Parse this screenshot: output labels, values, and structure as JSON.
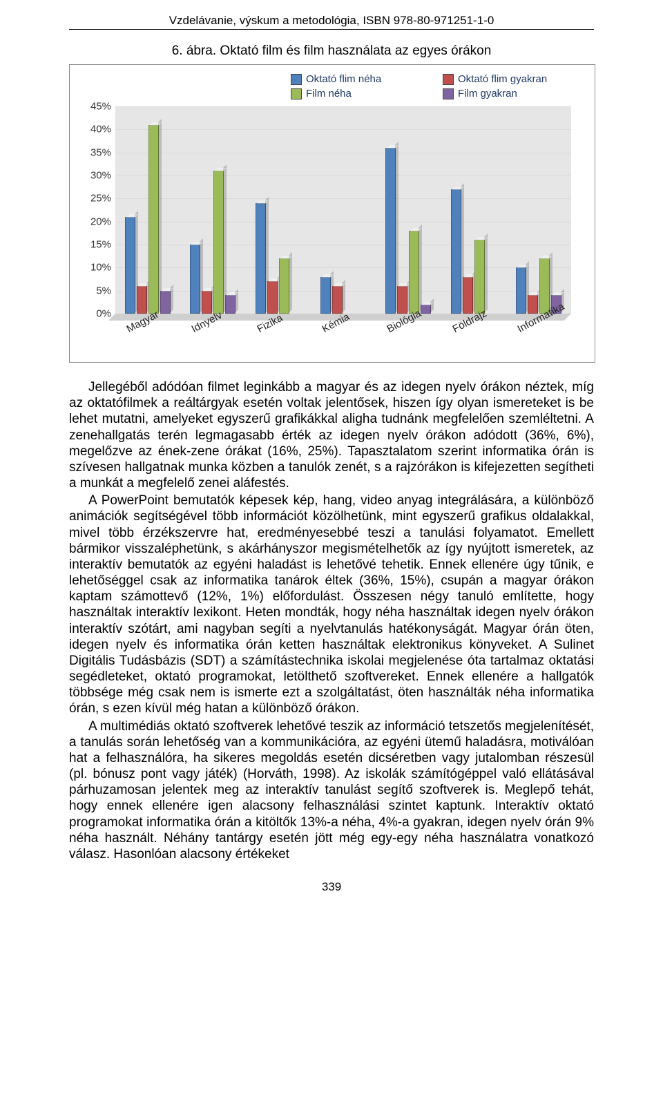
{
  "running_head": "Vzdelávanie, výskum a metodológia, ISBN 978-80-971251-1-0",
  "figure_caption": "6. ábra. Oktató film és film használata az egyes órákon",
  "chart": {
    "ylim": [
      0,
      45
    ],
    "ytick_step": 5,
    "ytick_suffix": "%",
    "categories": [
      "Magyar",
      "Idnyelv",
      "Fizika",
      "Kémia",
      "Biológia",
      "Földrajz",
      "Informatika"
    ],
    "series": [
      {
        "name": "Oktató flim néha",
        "color": "#4f81bd",
        "values": [
          21,
          15,
          24,
          8,
          36,
          27,
          10
        ]
      },
      {
        "name": "Oktató flim gyakran",
        "color": "#c0504d",
        "values": [
          6,
          5,
          7,
          6,
          6,
          8,
          4
        ]
      },
      {
        "name": "Film néha",
        "color": "#9bbb59",
        "values": [
          41,
          31,
          12,
          0,
          18,
          16,
          12
        ]
      },
      {
        "name": "Film gyakran",
        "color": "#8064a2",
        "values": [
          5,
          4,
          0,
          0,
          2,
          0,
          4
        ]
      }
    ],
    "legend_layout": [
      [
        0,
        1
      ],
      [
        2,
        3
      ]
    ],
    "plot_bg": "#f4f4f4",
    "grid_color": "#d9d9d9",
    "axis_label_color": "#333333",
    "font_size_axis": 15,
    "font_size_legend": 15,
    "legend_text_color": "#203864"
  },
  "paragraphs": [
    "Jellegéből adódóan filmet leginkább a magyar és az idegen nyelv órákon néztek, míg az oktatófilmek a reáltárgyak esetén voltak jelentősek, hiszen így olyan ismereteket is be lehet mutatni, amelyeket egyszerű grafikákkal aligha tudnánk megfelelően szemléltetni. A zenehallgatás terén legmagasabb érték az idegen nyelv órákon adódott (36%, 6%), megelőzve az ének-zene órákat (16%, 25%). Tapasztalatom szerint informatika órán is szívesen hallgatnak munka közben a tanulók zenét, s a rajzórákon is kifejezetten segítheti a munkát a megfelelő zenei aláfestés.",
    "A PowerPoint bemutatók képesek kép, hang, video anyag integrálására, a különböző animációk segítségével több információt közölhetünk, mint egyszerű grafikus oldalakkal, mivel több érzékszervre hat, eredményesebbé teszi a tanulási folyamatot. Emellett bármikor visszaléphetünk, s akárhányszor megismételhetők az így nyújtott ismeretek, az interaktív bemutatók az egyéni haladást is lehetővé tehetik. Ennek ellenére úgy tűnik, e lehetőséggel csak az informatika tanárok éltek (36%, 15%), csupán a magyar órákon kaptam számottevő (12%, 1%) előfordulást. Összesen négy tanuló említette, hogy használtak interaktív lexikont. Heten mondták, hogy néha használtak idegen nyelv órákon interaktív szótárt, ami nagyban segíti a nyelvtanulás hatékonyságát. Magyar órán öten, idegen nyelv és informatika órán ketten használtak elektronikus könyveket. A Sulinet Digitális Tudásbázis (SDT) a számítástechnika iskolai megjelenése óta tartalmaz oktatási segédleteket, oktató programokat, letölthető szoftvereket. Ennek ellenére a hallgatók többsége még csak nem is ismerte ezt a szolgáltatást, öten használták néha informatika órán, s ezen kívül még hatan a különböző órákon.",
    "A multimédiás oktató szoftverek lehetővé teszik az információ tetszetős megjelenítését, a tanulás során lehetőség van a kommunikációra, az egyéni ütemű haladásra, motiválóan hat a felhasználóra, ha sikeres megoldás esetén dicséretben vagy jutalomban részesül (pl. bónusz pont vagy játék) (Horváth, 1998). Az iskolák számítógéppel való ellátásával párhuzamosan jelentek meg az interaktív tanulást segítő szoftverek is. Meglepő tehát, hogy ennek ellenére igen alacsony felhasználási szintet kaptunk. Interaktív oktató programokat informatika órán a kitöltők 13%-a néha, 4%-a gyakran, idegen nyelv órán 9% néha használt. Néhány tantárgy esetén jött még egy-egy néha használatra vonatkozó válasz. Hasonlóan alacsony értékeket"
  ],
  "page_number": "339"
}
